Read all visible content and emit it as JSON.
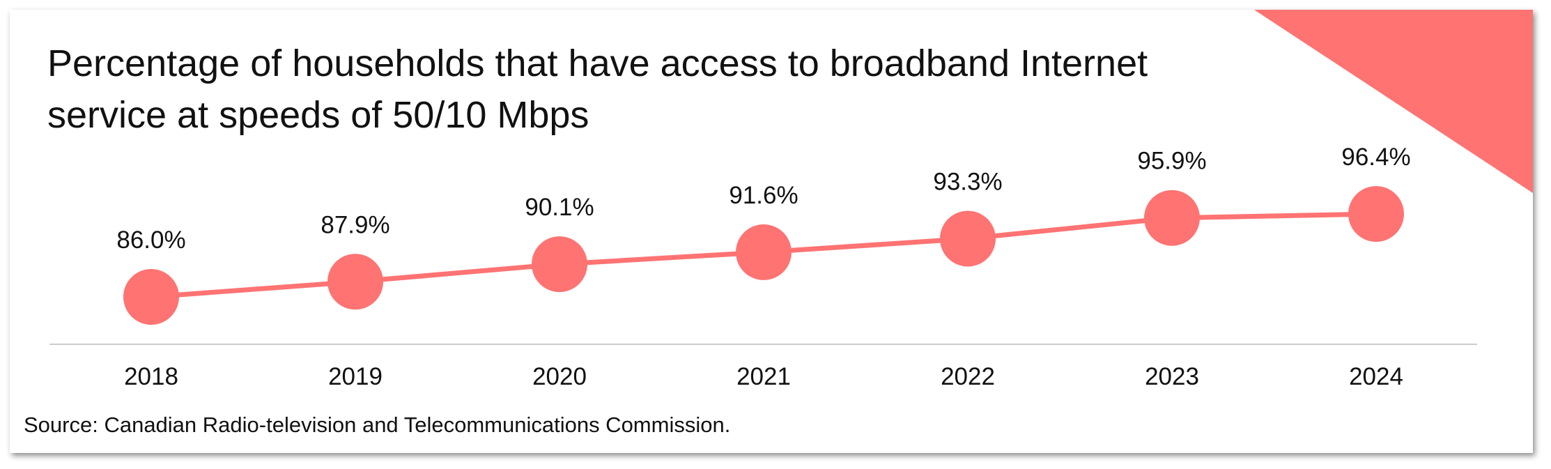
{
  "chart_data": {
    "type": "line",
    "title": "Percentage of households that have access to broadband Internet service at speeds of 50/10 Mbps",
    "categories": [
      "2018",
      "2019",
      "2020",
      "2021",
      "2022",
      "2023",
      "2024"
    ],
    "values": [
      86.0,
      87.9,
      90.1,
      91.6,
      93.3,
      95.9,
      96.4
    ],
    "value_labels": [
      "86.0%",
      "87.9%",
      "90.1%",
      "91.6%",
      "93.3%",
      "95.9%",
      "96.4%"
    ],
    "color": "#ff7373",
    "source": "Source: Canadian Radio-television and Telecommunications Commission."
  }
}
